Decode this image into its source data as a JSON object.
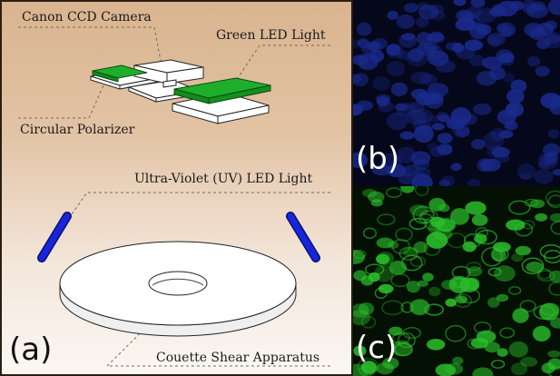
{
  "labels": {
    "camera": "Canon CCD Camera",
    "green_led": "Green LED Light",
    "polarizer": "Circular Polarizer",
    "uv_led": "Ultra-Violet (UV) LED Light",
    "couette": "Couette Shear Apparatus"
  },
  "panels": {
    "a": "(a)",
    "b": "(b)",
    "c": "(c)"
  },
  "colors": {
    "green_led": "#1fae2b",
    "uv_led": "#1220d6",
    "panel_b_particles": "#1a2a8c",
    "panel_c_particles": "#2bbf2b"
  }
}
